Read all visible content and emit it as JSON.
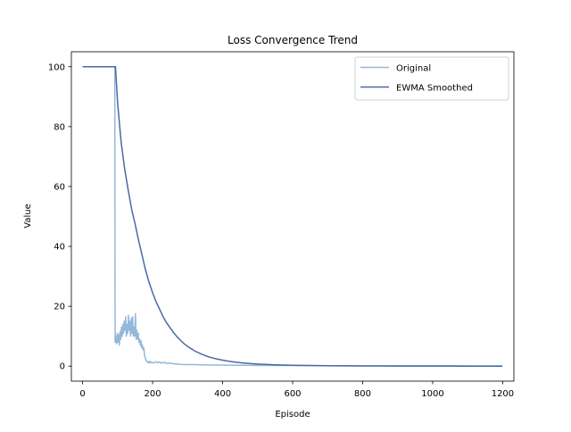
{
  "chart_data": {
    "type": "line",
    "title": "Loss Convergence Trend",
    "xlabel": "Episode",
    "ylabel": "Value",
    "xlim": [
      -32,
      1232
    ],
    "ylim": [
      -5,
      105
    ],
    "xticks": [
      0,
      200,
      400,
      600,
      800,
      1000,
      1200
    ],
    "yticks": [
      0,
      20,
      40,
      60,
      80,
      100
    ],
    "grid": false,
    "legend_position": "top-right",
    "series": [
      {
        "name": "Original",
        "color": "#94b8d9",
        "x": [
          0,
          20,
          40,
          60,
          80,
          92,
          93,
          95,
          97,
          99,
          101,
          103,
          105,
          107,
          109,
          111,
          113,
          115,
          117,
          119,
          121,
          123,
          125,
          127,
          129,
          131,
          133,
          135,
          137,
          139,
          141,
          143,
          145,
          147,
          149,
          151,
          153,
          155,
          157,
          159,
          161,
          163,
          165,
          167,
          169,
          171,
          173,
          175,
          177,
          179,
          181,
          183,
          185,
          187,
          189,
          191,
          193,
          195,
          197,
          199,
          205,
          210,
          215,
          220,
          225,
          230,
          235,
          240,
          250,
          260,
          270,
          280,
          300,
          320,
          350,
          400,
          450,
          500,
          600,
          700,
          800,
          900,
          1000,
          1100,
          1199
        ],
        "values": [
          100,
          100,
          100,
          100,
          100,
          100,
          8,
          10,
          7.5,
          11,
          8,
          10.5,
          7,
          11.5,
          9,
          13,
          10,
          14,
          11,
          15,
          12,
          16.5,
          10,
          14,
          11,
          17,
          12,
          15,
          10,
          16,
          11,
          16.5,
          10,
          13,
          10,
          17.5,
          9,
          12,
          9,
          11,
          8,
          9,
          7,
          8.5,
          6,
          7,
          5.5,
          6,
          3.5,
          2.8,
          2,
          1.6,
          1.5,
          1.2,
          1.6,
          1.1,
          1.5,
          1.2,
          1.3,
          1.1,
          1.2,
          1.5,
          1.1,
          1.4,
          1.0,
          1.2,
          1.3,
          0.9,
          1.0,
          0.8,
          0.7,
          0.6,
          0.5,
          0.5,
          0.4,
          0.35,
          0.3,
          0.25,
          0.2,
          0.15,
          0.12,
          0.1,
          0.1,
          0.08,
          0.05
        ]
      },
      {
        "name": "EWMA Smoothed",
        "color": "#4a6aa3",
        "x": [
          0,
          20,
          40,
          60,
          80,
          94,
          100,
          110,
          120,
          130,
          140,
          150,
          160,
          170,
          180,
          190,
          200,
          210,
          220,
          230,
          240,
          250,
          260,
          270,
          280,
          290,
          300,
          320,
          340,
          360,
          380,
          400,
          420,
          440,
          460,
          480,
          500,
          550,
          600,
          650,
          700,
          750,
          800,
          850,
          900,
          1000,
          1100,
          1199
        ],
        "values": [
          100,
          100,
          100,
          100,
          100,
          100,
          88,
          75,
          66,
          59,
          52.5,
          47.5,
          42,
          37,
          32,
          28,
          24.5,
          21.5,
          19,
          16.5,
          14.5,
          12.8,
          11.2,
          9.8,
          8.6,
          7.5,
          6.6,
          5.1,
          4.0,
          3.1,
          2.5,
          2.0,
          1.6,
          1.3,
          1.05,
          0.85,
          0.7,
          0.45,
          0.3,
          0.2,
          0.14,
          0.1,
          0.07,
          0.05,
          0.04,
          0.02,
          0.01,
          0.01
        ]
      }
    ]
  }
}
